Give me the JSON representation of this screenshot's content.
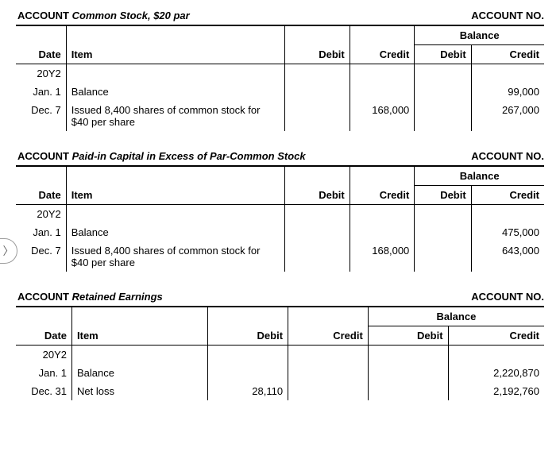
{
  "labels": {
    "account_prefix": "ACCOUNT",
    "account_no": "ACCOUNT NO.",
    "date": "Date",
    "item": "Item",
    "debit": "Debit",
    "credit": "Credit",
    "balance": "Balance"
  },
  "side_arrow_glyph": "〉",
  "ledgers": [
    {
      "title": "Common Stock, $20 par",
      "col_widths": {
        "date": 62,
        "item": 270,
        "debit": 80,
        "credit": 80,
        "bdebit": 70,
        "bcredit": 90
      },
      "year": "20Y2",
      "rows": [
        {
          "date": "Jan. 1",
          "item": "Balance",
          "debit": "",
          "credit": "",
          "bdebit": "",
          "bcredit": "99,000"
        },
        {
          "date": "Dec. 7",
          "item": "Issued 8,400 shares of common stock for $40 per share",
          "debit": "",
          "credit": "168,000",
          "bdebit": "",
          "bcredit": "267,000"
        }
      ]
    },
    {
      "title": "Paid-in Capital in Excess of Par-Common Stock",
      "col_widths": {
        "date": 62,
        "item": 270,
        "debit": 80,
        "credit": 80,
        "bdebit": 70,
        "bcredit": 90
      },
      "year": "20Y2",
      "rows": [
        {
          "date": "Jan. 1",
          "item": "Balance",
          "debit": "",
          "credit": "",
          "bdebit": "",
          "bcredit": "475,000"
        },
        {
          "date": "Dec. 7",
          "item": "Issued 8,400 shares of common stock for $40 per share",
          "debit": "",
          "credit": "168,000",
          "bdebit": "",
          "bcredit": "643,000"
        }
      ]
    },
    {
      "title": "Retained Earnings",
      "col_widths": {
        "date": 70,
        "item": 170,
        "debit": 100,
        "credit": 100,
        "bdebit": 100,
        "bcredit": 120
      },
      "year": "20Y2",
      "rows": [
        {
          "date": "Jan. 1",
          "item": "Balance",
          "debit": "",
          "credit": "",
          "bdebit": "",
          "bcredit": "2,220,870"
        },
        {
          "date": "Dec. 31",
          "item": "Net loss",
          "debit": "28,110",
          "credit": "",
          "bdebit": "",
          "bcredit": "2,192,760"
        }
      ]
    }
  ]
}
